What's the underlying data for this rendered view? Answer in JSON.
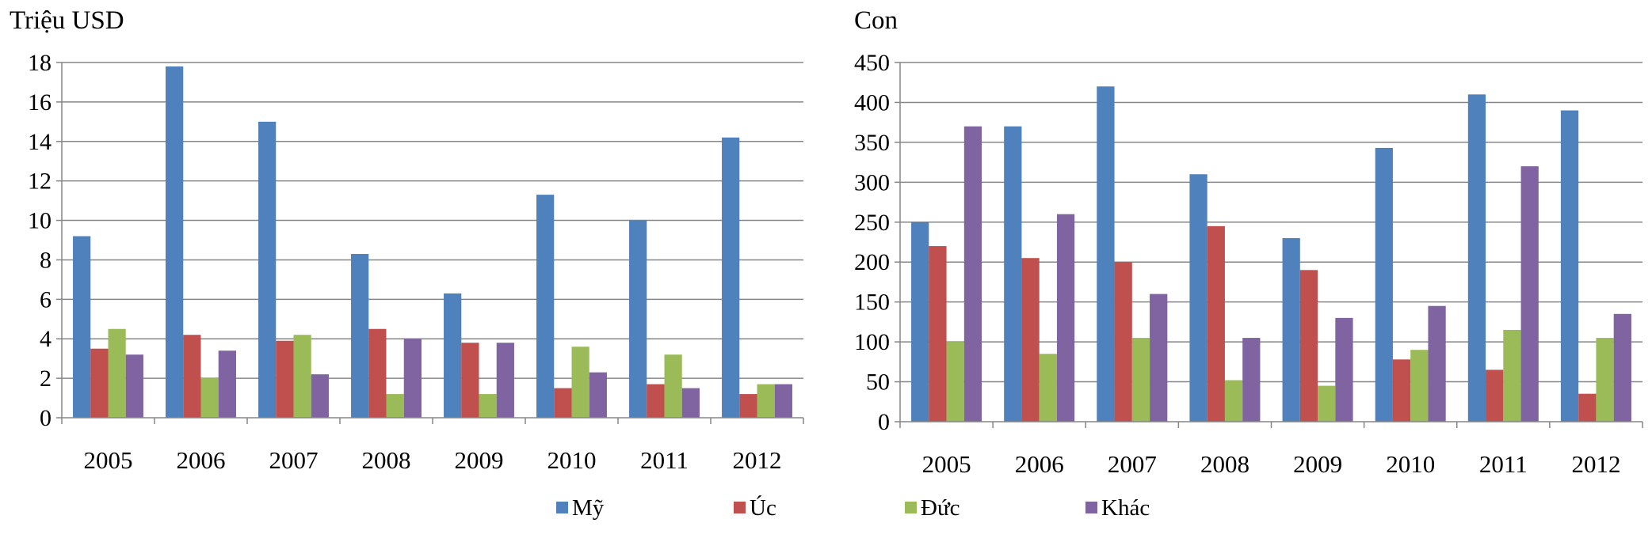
{
  "colors": {
    "My": "#4F81BD",
    "Uc": "#C0504D",
    "Duc": "#9BBB59",
    "Khac": "#8064A2",
    "grid": "#868686",
    "axis": "#868686"
  },
  "legend": {
    "placement": "bottom-center",
    "items": [
      {
        "key": "My",
        "label": "Mỹ"
      },
      {
        "key": "Uc",
        "label": "Úc"
      },
      {
        "key": "Duc",
        "label": "Đức"
      },
      {
        "key": "Khac",
        "label": "Khác"
      }
    ]
  },
  "chart_data": [
    {
      "type": "bar",
      "title": "",
      "unit_label": "Triệu USD",
      "xlabel": "",
      "ylabel": "Triệu USD",
      "grid": true,
      "ylim": [
        0,
        18
      ],
      "yticks": [
        "0",
        "2",
        "4",
        "6",
        "8",
        "10",
        "12",
        "14",
        "16",
        "18"
      ],
      "categories": [
        "2005",
        "2006",
        "2007",
        "2008",
        "2009",
        "2010",
        "2011",
        "2012"
      ],
      "series": [
        {
          "key": "My",
          "name": "Mỹ",
          "values": [
            9.2,
            17.8,
            15.0,
            8.3,
            6.3,
            11.3,
            10.0,
            14.2
          ]
        },
        {
          "key": "Uc",
          "name": "Úc",
          "values": [
            3.5,
            4.2,
            3.9,
            4.5,
            3.8,
            1.5,
            1.7,
            1.2
          ]
        },
        {
          "key": "Duc",
          "name": "Đức",
          "values": [
            4.5,
            2.0,
            4.2,
            1.2,
            1.2,
            3.6,
            3.2,
            1.7
          ]
        },
        {
          "key": "Khac",
          "name": "Khác",
          "values": [
            3.2,
            3.4,
            2.2,
            4.0,
            3.8,
            2.3,
            1.5,
            1.7
          ]
        }
      ]
    },
    {
      "type": "bar",
      "title": "",
      "unit_label": "Con",
      "xlabel": "",
      "ylabel": "Con",
      "grid": true,
      "ylim": [
        0,
        450
      ],
      "yticks": [
        "0",
        "50",
        "100",
        "150",
        "200",
        "250",
        "300",
        "350",
        "400",
        "450"
      ],
      "categories": [
        "2005",
        "2006",
        "2007",
        "2008",
        "2009",
        "2010",
        "2011",
        "2012"
      ],
      "series": [
        {
          "key": "My",
          "name": "Mỹ",
          "values": [
            250,
            370,
            420,
            310,
            230,
            343,
            410,
            390
          ]
        },
        {
          "key": "Uc",
          "name": "Úc",
          "values": [
            220,
            205,
            200,
            245,
            190,
            78,
            65,
            35
          ]
        },
        {
          "key": "Duc",
          "name": "Đức",
          "values": [
            100,
            85,
            105,
            52,
            45,
            90,
            115,
            105
          ]
        },
        {
          "key": "Khac",
          "name": "Khác",
          "values": [
            370,
            260,
            160,
            105,
            130,
            145,
            320,
            135
          ]
        }
      ]
    }
  ]
}
